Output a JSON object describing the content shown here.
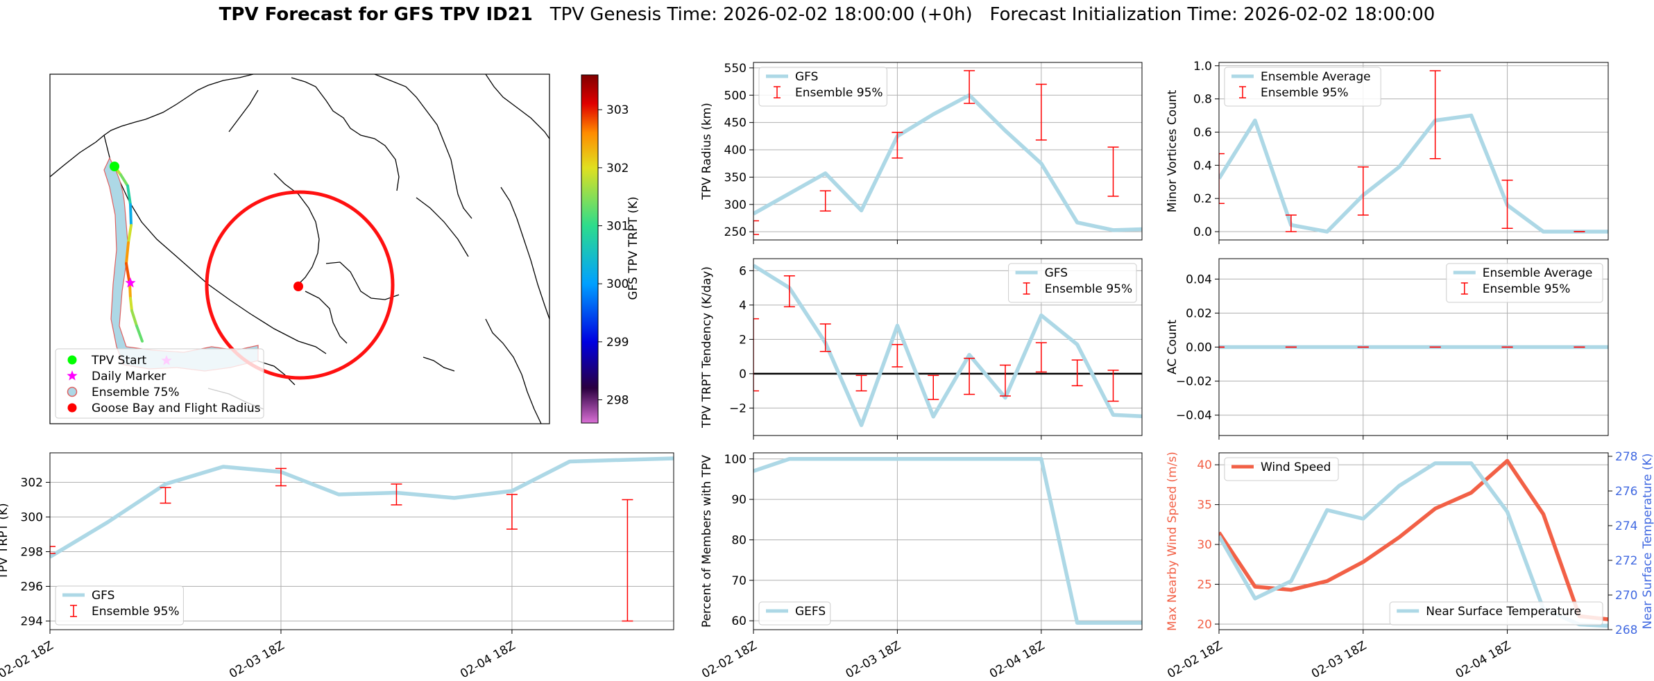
{
  "header": {
    "title_bold": "TPV Forecast for GFS TPV ID21",
    "genesis": "TPV Genesis Time: 2026-02-02 18:00:00 (+0h)",
    "init": "Forecast Initialization Time: 2026-02-02 18:00:00"
  },
  "colors": {
    "gfs_line": "#add8e6",
    "error_bar": "#ff0000",
    "wind": "#f26046",
    "temp_axis": "#4169e1",
    "plume_fill": "#add8e6",
    "goose_circle": "#ff1010",
    "grid": "#b0b0b0"
  },
  "map_panel": {
    "legend": [
      "TPV Start",
      "Daily Marker",
      "Ensemble 75%",
      "Goose Bay and Flight Radius"
    ],
    "colorbar": {
      "label": "GFS TPV TRPT (K)",
      "ticks": [
        298,
        299,
        300,
        301,
        302,
        303
      ],
      "range": [
        297.6,
        303.6
      ]
    },
    "track_trpt": [
      301.8,
      301.4,
      300.8,
      300.2,
      301.9,
      302.5,
      302.8,
      302.4,
      301.9,
      301.6,
      301.3,
      301.2
    ]
  },
  "chart_data": [
    {
      "id": "radius",
      "type": "line",
      "ylabel": "TPV Radius (km)",
      "ylim": [
        235,
        560
      ],
      "yticks": [
        250,
        300,
        350,
        400,
        450,
        500,
        550
      ],
      "series": [
        {
          "name": "GFS",
          "x": [
            0,
            1,
            2,
            3,
            4,
            5,
            6,
            7,
            8,
            9,
            10,
            11
          ],
          "values": [
            283,
            320,
            357,
            289,
            425,
            465,
            500,
            435,
            375,
            267,
            253,
            255
          ]
        }
      ],
      "errorbars": [
        {
          "name": "Ensemble 95%",
          "x": [
            0,
            2,
            4,
            6,
            8,
            10
          ],
          "low": [
            245,
            288,
            385,
            485,
            418,
            315
          ],
          "high": [
            270,
            325,
            432,
            545,
            520,
            405
          ]
        }
      ],
      "legend": [
        "GFS",
        "Ensemble 95%"
      ],
      "legend_pos": "upper-left"
    },
    {
      "id": "minor",
      "type": "line",
      "ylabel": "Minor Vortices Count",
      "ylim": [
        -0.05,
        1.02
      ],
      "yticks": [
        0.0,
        0.2,
        0.4,
        0.6,
        0.8,
        1.0
      ],
      "series": [
        {
          "name": "Ensemble Average",
          "x": [
            0,
            1,
            2,
            3,
            4,
            5,
            6,
            7,
            8,
            9,
            10,
            11
          ],
          "values": [
            0.32,
            0.67,
            0.04,
            0.0,
            0.22,
            0.39,
            0.67,
            0.7,
            0.16,
            0.0,
            0.0,
            0.0
          ]
        }
      ],
      "errorbars": [
        {
          "name": "Ensemble 95%",
          "x": [
            0,
            2,
            4,
            6,
            8,
            10
          ],
          "low": [
            0.17,
            0.0,
            0.1,
            0.44,
            0.02,
            0.0
          ],
          "high": [
            0.47,
            0.1,
            0.39,
            0.97,
            0.31,
            0.0
          ]
        }
      ],
      "legend": [
        "Ensemble Average",
        "Ensemble 95%"
      ],
      "legend_pos": "upper-left"
    },
    {
      "id": "tendency",
      "type": "line",
      "ylabel": "TPV TRPT Tendency (K/day)",
      "ylim": [
        -3.6,
        6.7
      ],
      "yticks": [
        -2,
        0,
        2,
        4,
        6
      ],
      "zero_line": true,
      "series": [
        {
          "name": "GFS",
          "x": [
            0,
            1,
            2,
            3,
            4,
            5,
            6,
            7,
            8,
            9,
            10,
            11
          ],
          "values": [
            6.3,
            5.0,
            1.8,
            -3.0,
            2.8,
            -2.5,
            1.1,
            -1.4,
            3.4,
            1.7,
            -2.4,
            -2.5
          ]
        }
      ],
      "errorbars": [
        {
          "name": "Ensemble 95%",
          "x": [
            0,
            1,
            2,
            3,
            4,
            5,
            6,
            7,
            8,
            9,
            10
          ],
          "low": [
            -1.0,
            3.9,
            1.3,
            -1.0,
            0.4,
            -1.5,
            -1.2,
            -1.3,
            0.1,
            -0.7,
            -1.6
          ],
          "high": [
            3.2,
            5.7,
            2.9,
            -0.1,
            1.7,
            -0.1,
            0.9,
            0.5,
            1.8,
            0.8,
            0.2
          ]
        }
      ],
      "legend": [
        "GFS",
        "Ensemble 95%"
      ],
      "legend_pos": "upper-right"
    },
    {
      "id": "ac",
      "type": "line",
      "ylabel": "AC Count",
      "ylim": [
        -0.052,
        0.052
      ],
      "yticks": [
        -0.04,
        -0.02,
        0.0,
        0.02,
        0.04
      ],
      "series": [
        {
          "name": "Ensemble Average",
          "x": [
            0,
            1,
            2,
            3,
            4,
            5,
            6,
            7,
            8,
            9,
            10,
            11
          ],
          "values": [
            0,
            0,
            0,
            0,
            0,
            0,
            0,
            0,
            0,
            0,
            0,
            0
          ]
        }
      ],
      "errorbars": [
        {
          "name": "Ensemble 95%",
          "x": [
            0,
            2,
            4,
            6,
            8,
            10
          ],
          "low": [
            0,
            0,
            0,
            0,
            0,
            0
          ],
          "high": [
            0,
            0,
            0,
            0,
            0,
            0
          ]
        }
      ],
      "legend": [
        "Ensemble Average",
        "Ensemble 95%"
      ],
      "legend_pos": "upper-right"
    },
    {
      "id": "trpt",
      "type": "line",
      "ylabel": "TPV TRPT (K)",
      "ylim": [
        293.5,
        303.7
      ],
      "yticks": [
        294,
        296,
        298,
        300,
        302
      ],
      "xticks": [
        "02-02 18Z",
        "02-03 18Z",
        "02-04 18Z"
      ],
      "series": [
        {
          "name": "GFS",
          "x": [
            0,
            1,
            2,
            3,
            4,
            5,
            6,
            7,
            8,
            9,
            10,
            11
          ],
          "values": [
            297.7,
            299.7,
            301.9,
            302.9,
            302.6,
            301.3,
            301.4,
            301.1,
            301.5,
            303.2,
            303.3,
            303.4
          ]
        }
      ],
      "errorbars": [
        {
          "name": "Ensemble 95%",
          "x": [
            0,
            2,
            4,
            6,
            8,
            10
          ],
          "low": [
            297.9,
            300.8,
            301.8,
            300.7,
            299.3,
            294.0
          ],
          "high": [
            298.3,
            301.7,
            302.8,
            301.9,
            301.3,
            301.0
          ]
        }
      ],
      "legend": [
        "GFS",
        "Ensemble 95%"
      ],
      "legend_pos": "lower-left"
    },
    {
      "id": "percent",
      "type": "line",
      "ylabel": "Percent of Members with TPV",
      "ylim": [
        57.8,
        101.5
      ],
      "yticks": [
        60,
        70,
        80,
        90,
        100
      ],
      "xticks": [
        "02-02 18Z",
        "02-03 18Z",
        "02-04 18Z"
      ],
      "series": [
        {
          "name": "GEFS",
          "x": [
            0,
            1,
            2,
            3,
            4,
            5,
            6,
            7,
            8,
            9,
            10,
            11
          ],
          "values": [
            97,
            100,
            100,
            100,
            100,
            100,
            100,
            100,
            100,
            59.5,
            59.5,
            59.5
          ]
        }
      ],
      "legend": [
        "GEFS"
      ],
      "legend_pos": "lower-left"
    },
    {
      "id": "wind",
      "type": "line",
      "ylabel": "Max Nearby Wind Speed (m/s)",
      "ylabel_right": "Near Surface Temperature (K)",
      "ylim": [
        19.3,
        41.5
      ],
      "yticks": [
        20,
        25,
        30,
        35,
        40
      ],
      "ylim_right": [
        268,
        278.2
      ],
      "yticks_right": [
        268,
        270,
        272,
        274,
        276,
        278
      ],
      "xticks": [
        "02-02 18Z",
        "02-03 18Z",
        "02-04 18Z"
      ],
      "series": [
        {
          "name": "Wind Speed",
          "axis": "left",
          "x": [
            0,
            1,
            2,
            3,
            4,
            5,
            6,
            7,
            8,
            9,
            10,
            11
          ],
          "values": [
            31.5,
            24.7,
            24.3,
            25.4,
            27.8,
            30.9,
            34.5,
            36.5,
            40.5,
            33.8,
            21.0,
            20.5
          ]
        },
        {
          "name": "Near Surface Temperature",
          "axis": "right",
          "x": [
            0,
            1,
            2,
            3,
            4,
            5,
            6,
            7,
            8,
            9,
            10,
            11
          ],
          "values": [
            273.4,
            269.8,
            270.8,
            274.9,
            274.4,
            276.3,
            277.6,
            277.6,
            274.8,
            269.2,
            268.3,
            268.2
          ]
        }
      ],
      "legend": [
        "Wind Speed"
      ],
      "legend_right": [
        "Near Surface Temperature"
      ],
      "legend_pos": "upper-left"
    }
  ]
}
